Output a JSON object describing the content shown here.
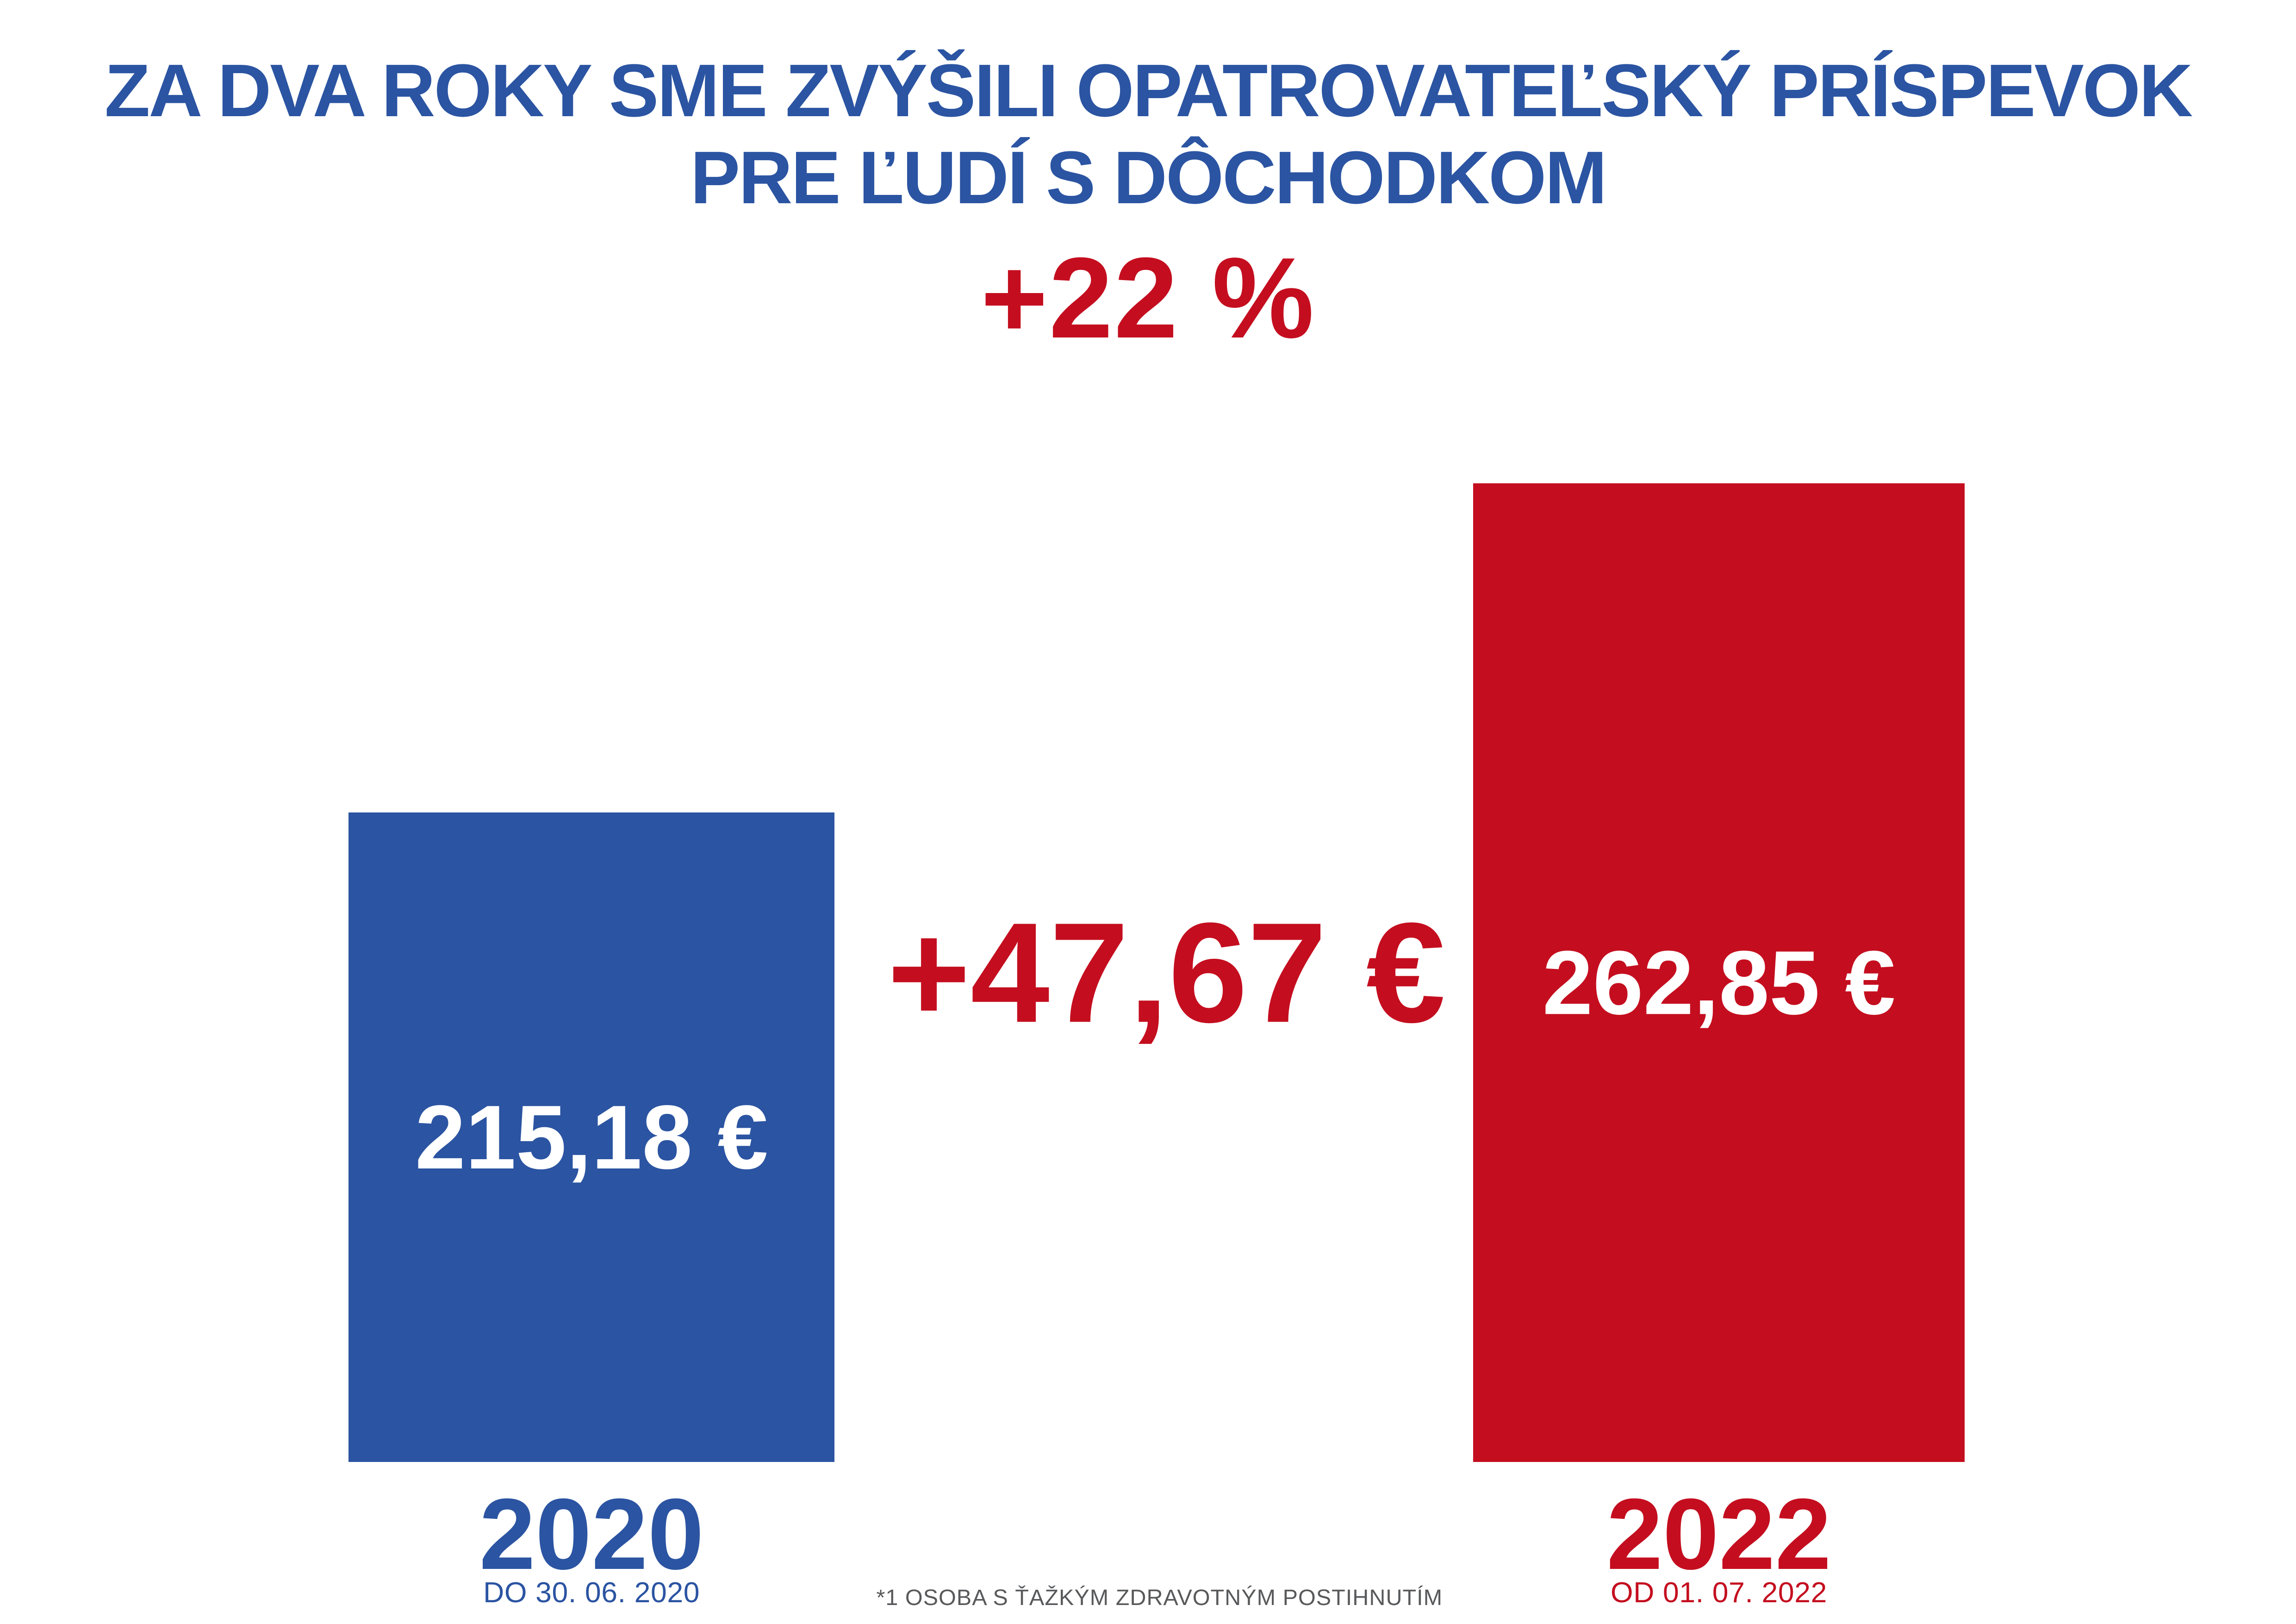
{
  "page": {
    "background": "#FFFFFF"
  },
  "title": {
    "line1": "ZA DVA ROKY SME ZVÝŠILI OPATROVATEĽSKÝ PRÍSPEVOK",
    "line2": "PRE ĽUDÍ S DÔCHODKOM",
    "color": "#2B54A2"
  },
  "highlight": {
    "percent_change": "+22 %",
    "color": "#C40E1F"
  },
  "comparison": {
    "difference_label": "+47,67 €"
  },
  "footnote": {
    "text": "*1 OSOBA S ŤAŽKÝM ZDRAVOTNÝM POSTIHNUTÍM",
    "color": "#58595B"
  },
  "chart_data": {
    "type": "bar",
    "title": "ZA DVA ROKY SME ZVÝŠILI OPATROVATEĽSKÝ PRÍSPEVOK PRE ĽUDÍ S DÔCHODKOM",
    "subtitle": "+22 %",
    "unit": "EUR",
    "categories": [
      "2020",
      "2022"
    ],
    "values": [
      215.18,
      262.85
    ],
    "bars": [
      {
        "category": "2020",
        "period": "DO 30. 06. 2020",
        "value": 215.18,
        "value_label": "215,18 €",
        "color": "#2B54A2"
      },
      {
        "category": "2022",
        "period": "OD 01. 07. 2022",
        "value": 262.85,
        "value_label": "262,85 €",
        "color": "#C40E1F"
      }
    ],
    "annotations": [
      {
        "text": "+47,67 €"
      },
      {
        "text": "+22 %"
      }
    ],
    "value_axis_visible": false,
    "gridlines": false,
    "legend": false
  }
}
